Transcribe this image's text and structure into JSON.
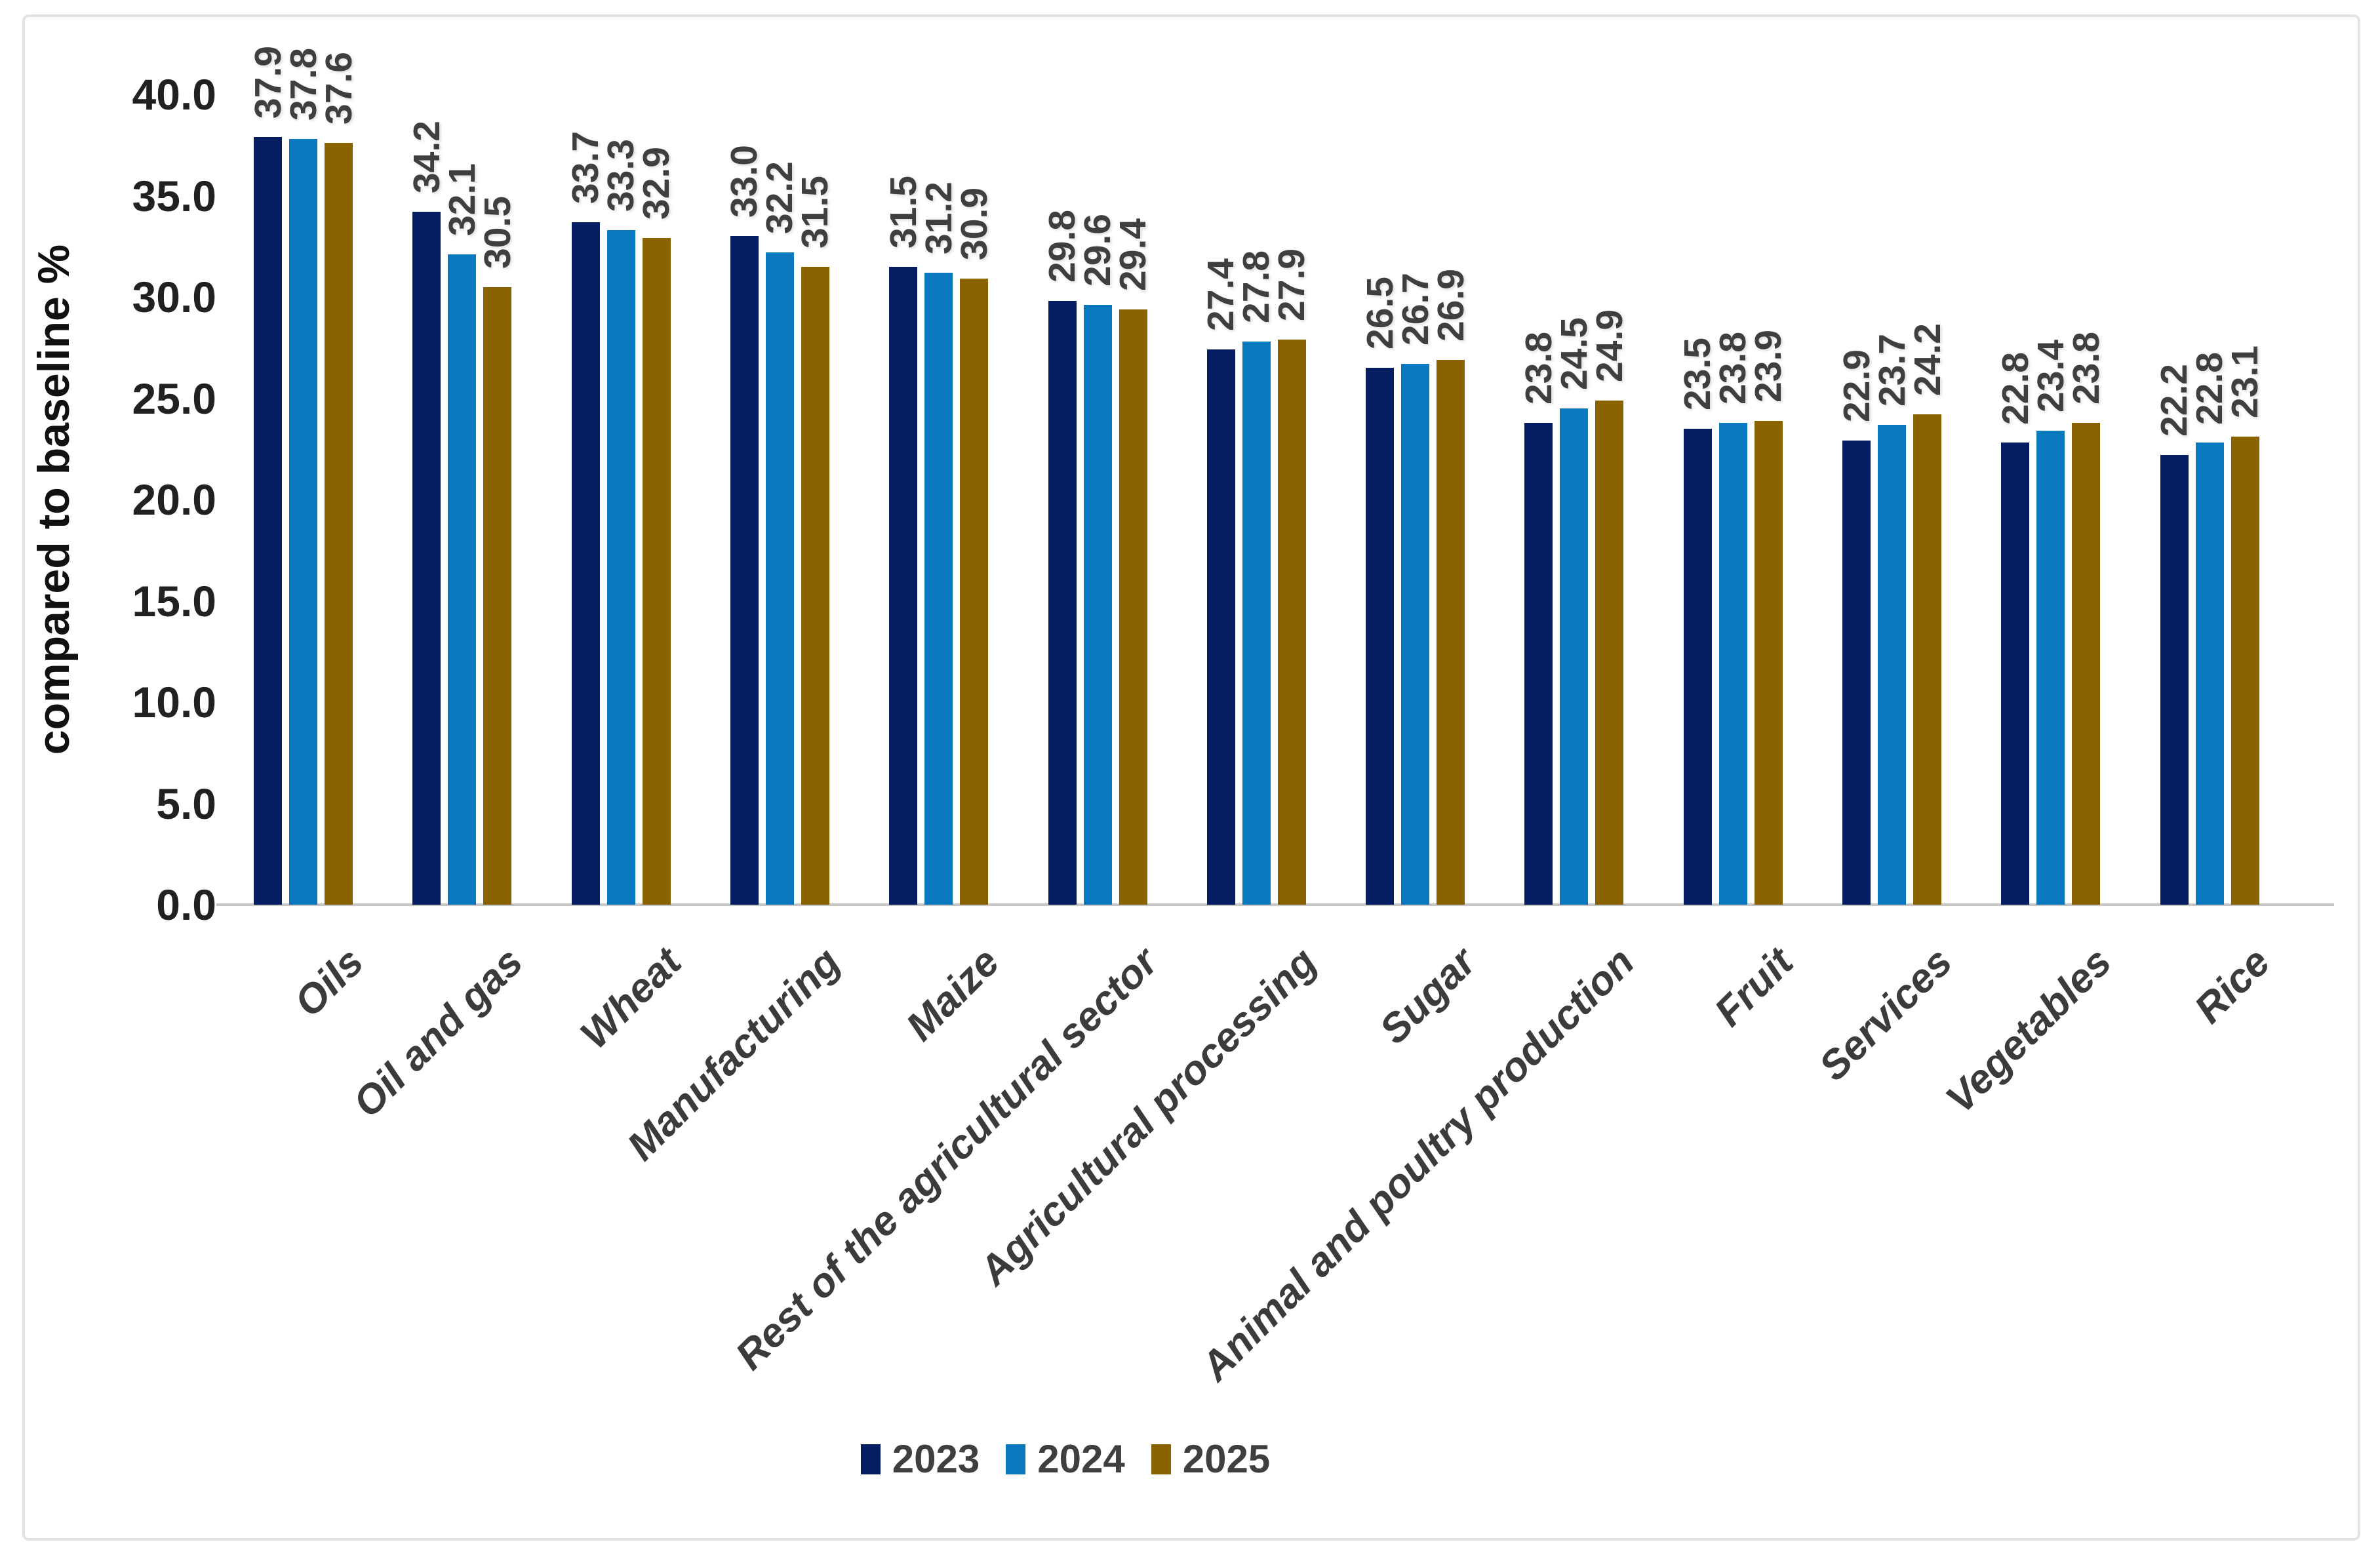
{
  "chart_data": {
    "type": "bar",
    "title": "",
    "ylabel": "compared to baseline %",
    "xlabel": "",
    "ylim": [
      0,
      40
    ],
    "ytick_step": 5,
    "ytick_labels": [
      "0.0",
      "5.0",
      "10.0",
      "15.0",
      "20.0",
      "25.0",
      "30.0",
      "35.0",
      "40.0"
    ],
    "grid": false,
    "legend_position": "bottom",
    "value_labels": "rotated-90-above-bars",
    "categories": [
      "Oils",
      "Oil and gas",
      "Wheat",
      "Manufacturing",
      "Maize",
      "Rest of the agricultural sector",
      "Agricultural processing",
      "Sugar",
      "Animal and poultry production",
      "Fruit",
      "Services",
      "Vegetables",
      "Rice"
    ],
    "series": [
      {
        "name": "2023",
        "color": "#041d63",
        "values": [
          37.9,
          34.2,
          33.7,
          33.0,
          31.5,
          29.8,
          27.4,
          26.5,
          23.8,
          23.5,
          22.9,
          22.8,
          22.2
        ]
      },
      {
        "name": "2024",
        "color": "#0b79c0",
        "values": [
          37.8,
          32.1,
          33.3,
          32.2,
          31.2,
          29.6,
          27.8,
          26.7,
          24.5,
          23.8,
          23.7,
          23.4,
          22.8
        ]
      },
      {
        "name": "2025",
        "color": "#8a6200",
        "values": [
          37.6,
          30.5,
          32.9,
          31.5,
          30.9,
          29.4,
          27.9,
          26.9,
          24.9,
          23.9,
          24.2,
          23.8,
          23.1
        ]
      }
    ]
  },
  "style_colors": {
    "axis_line": "#c6c6c6",
    "frame_border": "#e3e3e3",
    "tick_text": "#212121",
    "value_label_text": "#3f3f3f",
    "category_text": "#3b3b3b",
    "legend_text": "#3f3f3f"
  }
}
